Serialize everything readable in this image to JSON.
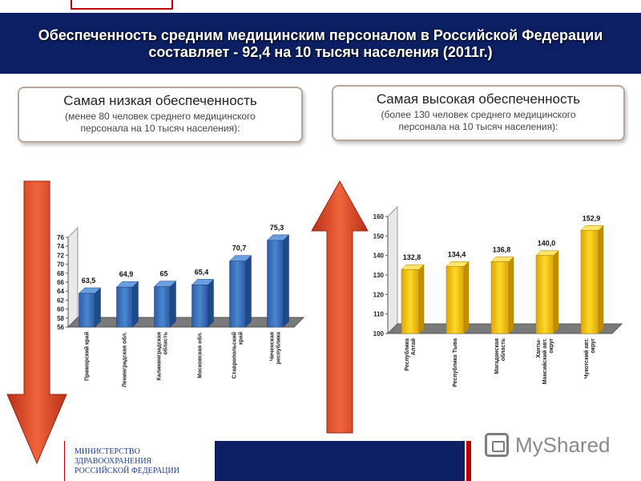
{
  "header": {
    "title_line1": "Обеспеченность средним медицинским персоналом в Российской Федерации",
    "title_line2": "составляет - 92,4 на 10 тысяч населения (2011г.)"
  },
  "low_box": {
    "heading": "Самая низкая обеспеченность",
    "sub1": "(менее 80 человек среднего медицинского",
    "sub2": "персонала на 10 тысяч населения):"
  },
  "high_box": {
    "heading": "Самая высокая обеспеченность",
    "sub1": "(более 130 человек среднего медицинского",
    "sub2": "персонала на 10 тысяч населения):"
  },
  "footer": {
    "ministry_line1": "МИНИСТЕРСТВО",
    "ministry_line2": "ЗДРАВООХРАНЕНИЯ",
    "ministry_line3": "РОССИЙСКОЙ ФЕДЕРАЦИИ",
    "watermark": "MyShared"
  },
  "colors": {
    "banner": "#0d1f63",
    "low_bar": "#3b6fb6",
    "high_bar": "#f2c200",
    "arrow": "#e04a1f"
  },
  "chart_data": [
    {
      "type": "bar",
      "title": "",
      "categories": [
        [
          "Приморский край"
        ],
        [
          "Ленинградская обл."
        ],
        [
          "Калининградская",
          "область"
        ],
        [
          "Московская обл."
        ],
        [
          "Ставропольский",
          "край"
        ],
        [
          "Чеченская",
          "республика"
        ]
      ],
      "values": [
        63.5,
        64.9,
        65,
        65.4,
        70.7,
        75.3
      ],
      "data_labels": [
        "63,5",
        "64,9",
        "65",
        "65,4",
        "70,7",
        "75,3"
      ],
      "yticks": [
        56,
        58,
        60,
        62,
        64,
        66,
        68,
        70,
        72,
        74,
        76
      ],
      "ylim": [
        56,
        76
      ],
      "xlabel": "",
      "ylabel": ""
    },
    {
      "type": "bar",
      "title": "",
      "categories": [
        [
          "Республика",
          "Алтай"
        ],
        [
          "Республика Тыва"
        ],
        [
          "Магаданская",
          "область"
        ],
        [
          "Ханты-",
          "Мансийский авт.",
          "округ"
        ],
        [
          "Чукотский авт.",
          "округ"
        ]
      ],
      "values": [
        132.8,
        134.4,
        136.8,
        140.0,
        152.9
      ],
      "data_labels": [
        "132,8",
        "134,4",
        "136,8",
        "140,0",
        "152,9"
      ],
      "yticks": [
        100,
        110,
        120,
        130,
        140,
        150,
        160
      ],
      "ylim": [
        100,
        160
      ],
      "xlabel": "",
      "ylabel": ""
    }
  ]
}
